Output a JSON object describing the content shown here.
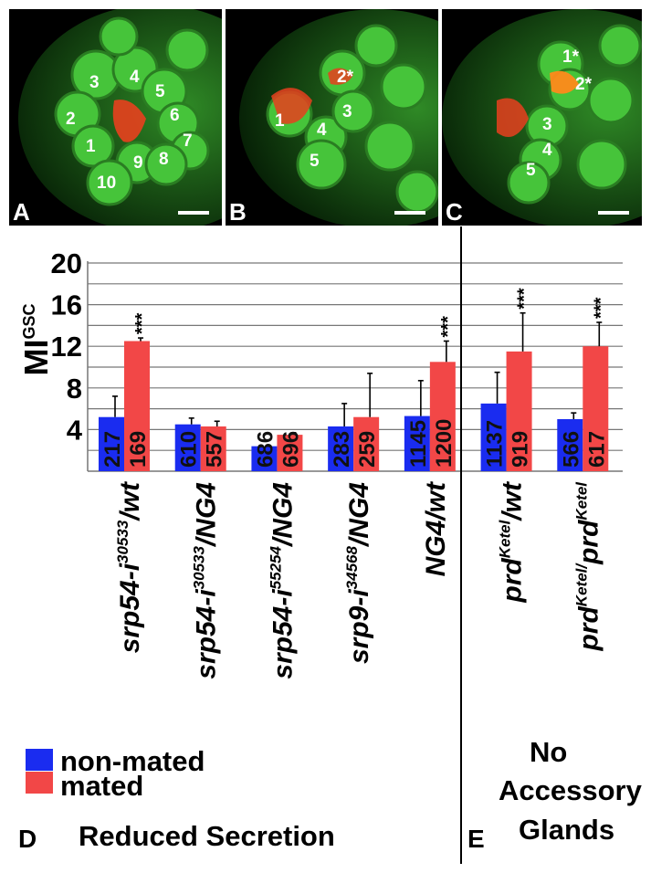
{
  "panels": [
    {
      "letter": "A",
      "labels": [
        "3",
        "4",
        "5",
        "2",
        "6",
        "1",
        "7",
        "9",
        "8",
        "10"
      ]
    },
    {
      "letter": "B",
      "labels": [
        "2*",
        "1",
        "4",
        "3",
        "5"
      ]
    },
    {
      "letter": "C",
      "labels": [
        "1*",
        "2*",
        "3",
        "4",
        "5"
      ]
    }
  ],
  "chart_data": {
    "type": "bar",
    "ylabel_main": "MI",
    "ylabel_sup": "GSC",
    "ylim": [
      0,
      20
    ],
    "yticks": [
      4,
      8,
      12,
      16,
      20
    ],
    "categories": [
      {
        "main": "srp54-i",
        "sup": "30533",
        "rest": "/wt"
      },
      {
        "main": "srp54-i",
        "sup": "30533",
        "rest": "/NG4"
      },
      {
        "main": "srp54-i",
        "sup": "55254",
        "rest": "/NG4"
      },
      {
        "main": "srp9-i",
        "sup": "34568",
        "rest": "/NG4"
      },
      {
        "main": "NG4/wt",
        "sup": "",
        "rest": ""
      },
      {
        "main": "prd",
        "sup": "Ketel",
        "rest": "/wt"
      },
      {
        "main": "prd",
        "sup": "Ketel/",
        "rest": "prd",
        "sup2": "Ketel"
      }
    ],
    "series": [
      {
        "name": "non-mated",
        "color": "#1a2cf0",
        "values": [
          5.2,
          4.5,
          2.4,
          4.3,
          5.3,
          6.5,
          5.0
        ],
        "errors": [
          2.0,
          0.6,
          0.0,
          2.2,
          3.4,
          3.0,
          0.6
        ],
        "counts": [
          "217",
          "610",
          "686",
          "283",
          "1145",
          "1137",
          "566"
        ]
      },
      {
        "name": "mated",
        "color": "#f24747",
        "values": [
          12.5,
          4.3,
          3.5,
          5.2,
          10.5,
          11.5,
          12.0
        ],
        "errors": [
          0.3,
          0.5,
          0.2,
          4.2,
          2.0,
          3.7,
          2.3
        ],
        "counts": [
          "169",
          "557",
          "696",
          "259",
          "1200",
          "919",
          "617"
        ],
        "significance": [
          "***",
          "",
          "",
          "",
          "***",
          "***",
          "***"
        ]
      }
    ],
    "group_labels": {
      "left": "Reduced Secretion",
      "right_lines": [
        "No",
        "Accessory",
        "Glands"
      ]
    },
    "panel_letters": {
      "left": "D",
      "right": "E"
    }
  }
}
